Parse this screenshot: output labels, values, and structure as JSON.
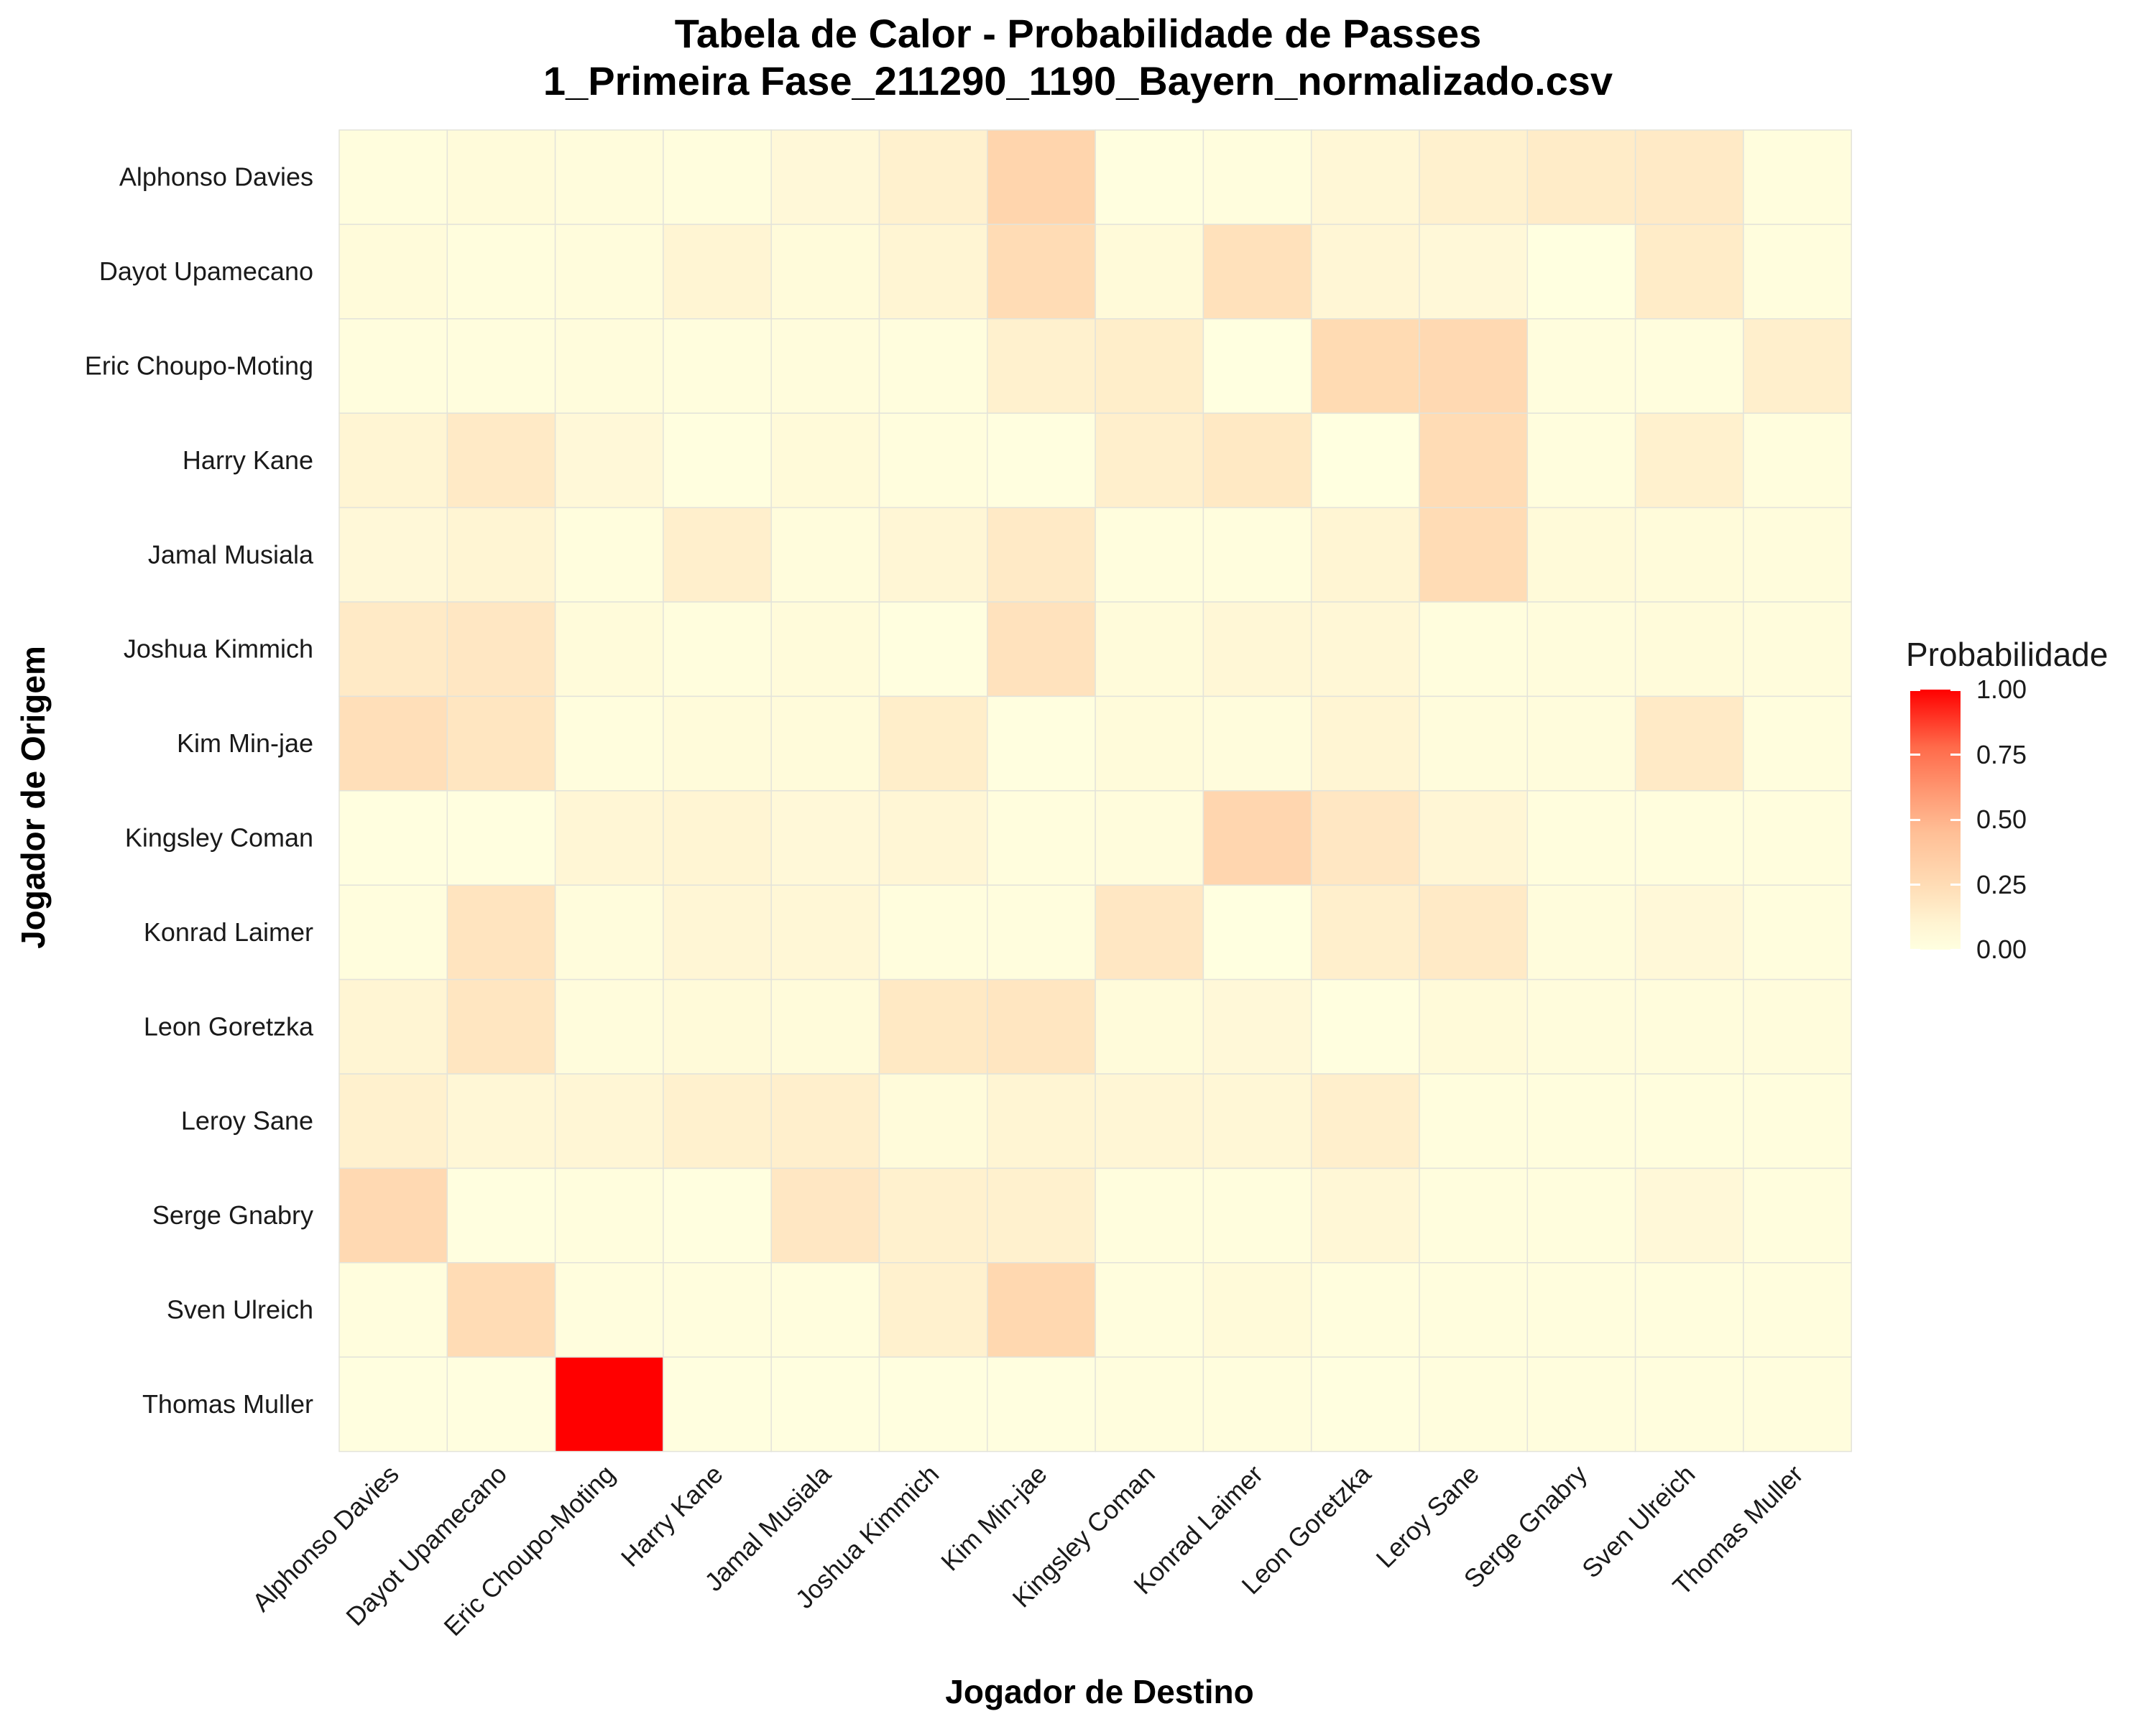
{
  "chart_data": {
    "type": "heatmap",
    "title": "Tabela de Calor - Probabilidade de Passes",
    "subtitle": "1_Primeira Fase_211290_1190_Bayern_normalizado.csv",
    "xlabel": "Jogador de Destino",
    "ylabel": "Jogador de Origem",
    "legend_title": "Probabilidade",
    "legend_position": "right",
    "color_range": [
      0,
      1
    ],
    "color_low": "#ffffe0",
    "color_high": "#ff0000",
    "legend_ticks": [
      "0.00",
      "0.25",
      "0.50",
      "0.75",
      "1.00"
    ],
    "x_categories": [
      "Alphonso Davies",
      "Dayot Upamecano",
      "Eric Choupo-Moting",
      "Harry Kane",
      "Jamal Musiala",
      "Joshua Kimmich",
      "Kim Min-jae",
      "Kingsley Coman",
      "Konrad Laimer",
      "Leon Goretzka",
      "Leroy Sane",
      "Serge Gnabry",
      "Sven Ulreich",
      "Thomas Muller"
    ],
    "y_categories": [
      "Alphonso Davies",
      "Dayot Upamecano",
      "Eric Choupo-Moting",
      "Harry Kane",
      "Jamal Musiala",
      "Joshua Kimmich",
      "Kim Min-jae",
      "Kingsley Coman",
      "Konrad Laimer",
      "Leon Goretzka",
      "Leroy Sane",
      "Serge Gnabry",
      "Sven Ulreich",
      "Thomas Muller"
    ],
    "values": [
      [
        0.02,
        0.04,
        0.03,
        0.02,
        0.06,
        0.12,
        0.3,
        0.01,
        0.02,
        0.07,
        0.12,
        0.15,
        0.16,
        0.02
      ],
      [
        0.04,
        0.02,
        0.03,
        0.09,
        0.04,
        0.09,
        0.25,
        0.05,
        0.22,
        0.08,
        0.06,
        0.0,
        0.15,
        0.02
      ],
      [
        0.02,
        0.02,
        0.03,
        0.02,
        0.03,
        0.02,
        0.12,
        0.14,
        0.0,
        0.26,
        0.27,
        0.02,
        0.02,
        0.13
      ],
      [
        0.09,
        0.16,
        0.06,
        0.01,
        0.05,
        0.02,
        0.01,
        0.13,
        0.17,
        0.0,
        0.25,
        0.02,
        0.12,
        0.02
      ],
      [
        0.06,
        0.09,
        0.02,
        0.13,
        0.03,
        0.08,
        0.16,
        0.02,
        0.02,
        0.09,
        0.25,
        0.05,
        0.04,
        0.03
      ],
      [
        0.16,
        0.18,
        0.04,
        0.02,
        0.04,
        0.01,
        0.21,
        0.04,
        0.07,
        0.07,
        0.02,
        0.03,
        0.04,
        0.03
      ],
      [
        0.23,
        0.19,
        0.02,
        0.04,
        0.04,
        0.14,
        0.01,
        0.04,
        0.03,
        0.09,
        0.03,
        0.03,
        0.16,
        0.02
      ],
      [
        0.01,
        0.01,
        0.08,
        0.09,
        0.06,
        0.08,
        0.02,
        0.03,
        0.29,
        0.18,
        0.08,
        0.02,
        0.02,
        0.02
      ],
      [
        0.02,
        0.2,
        0.03,
        0.08,
        0.07,
        0.02,
        0.02,
        0.18,
        0.0,
        0.13,
        0.16,
        0.03,
        0.06,
        0.02
      ],
      [
        0.09,
        0.19,
        0.03,
        0.05,
        0.04,
        0.17,
        0.19,
        0.04,
        0.06,
        0.01,
        0.05,
        0.03,
        0.03,
        0.03
      ],
      [
        0.12,
        0.07,
        0.08,
        0.12,
        0.13,
        0.04,
        0.09,
        0.08,
        0.07,
        0.13,
        0.02,
        0.02,
        0.02,
        0.02
      ],
      [
        0.27,
        0.01,
        0.02,
        0.01,
        0.18,
        0.12,
        0.12,
        0.02,
        0.02,
        0.07,
        0.02,
        0.02,
        0.06,
        0.02
      ],
      [
        0.02,
        0.25,
        0.02,
        0.02,
        0.02,
        0.12,
        0.28,
        0.02,
        0.05,
        0.02,
        0.02,
        0.02,
        0.02,
        0.02
      ],
      [
        0.01,
        0.01,
        1.0,
        0.01,
        0.01,
        0.01,
        0.01,
        0.02,
        0.02,
        0.01,
        0.02,
        0.02,
        0.02,
        0.02
      ]
    ]
  }
}
